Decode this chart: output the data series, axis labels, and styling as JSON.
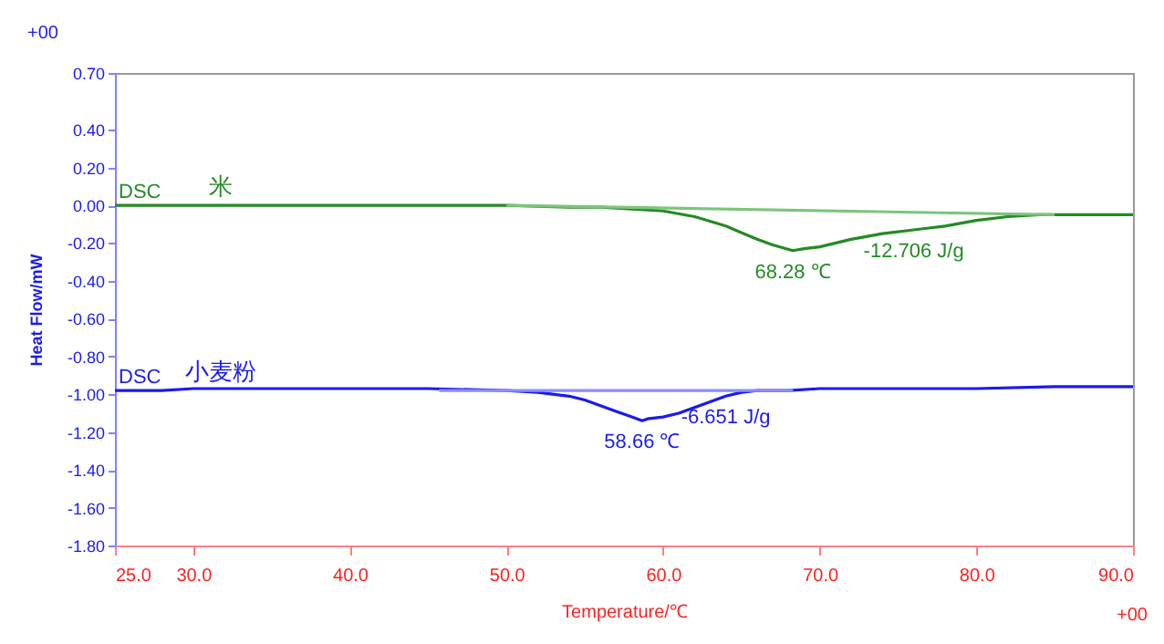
{
  "chart_data": {
    "type": "line",
    "xlabel": "Temperature/℃",
    "ylabel": "Heat Flow/mW",
    "xlim": [
      25,
      90
    ],
    "xticks": [
      {
        "value": 25,
        "label": "25.0"
      },
      {
        "value": 30,
        "label": "30.0"
      },
      {
        "value": 40,
        "label": "40.0"
      },
      {
        "value": 50,
        "label": "50.0"
      },
      {
        "value": 60,
        "label": "60.0"
      },
      {
        "value": 70,
        "label": "70.0"
      },
      {
        "value": 80,
        "label": "80.0"
      },
      {
        "value": 90,
        "label": "90.0"
      }
    ],
    "ylim": [
      -1.8,
      0.7
    ],
    "yticks": [
      {
        "value": 0.7,
        "label": "0.70"
      },
      {
        "value": 0.4,
        "label": "0.40"
      },
      {
        "value": 0.2,
        "label": "0.20"
      },
      {
        "value": 0,
        "label": "0.00"
      },
      {
        "value": -0.2,
        "label": "-0.20"
      },
      {
        "value": -0.4,
        "label": "-0.40"
      },
      {
        "value": -0.6,
        "label": "-0.60"
      },
      {
        "value": -0.8,
        "label": "-0.80"
      },
      {
        "value": -1,
        "label": "-1.00"
      },
      {
        "value": -1.2,
        "label": "-1.20"
      },
      {
        "value": -1.4,
        "label": "-1.40"
      },
      {
        "value": -1.6,
        "label": "-1.60"
      },
      {
        "value": -1.8,
        "label": "-1.80"
      }
    ],
    "series": [
      {
        "name": "米",
        "color": "#228b22",
        "x": [
          25,
          30,
          35,
          40,
          45,
          50,
          54,
          56,
          58,
          60,
          62,
          64,
          66,
          67,
          68.28,
          69,
          70,
          72,
          74,
          76,
          78,
          80,
          82,
          84,
          86,
          88,
          90
        ],
        "values": [
          0,
          0,
          0,
          0,
          0,
          0,
          -0.01,
          -0.01,
          -0.02,
          -0.03,
          -0.06,
          -0.11,
          -0.18,
          -0.21,
          -0.24,
          -0.23,
          -0.22,
          -0.18,
          -0.15,
          -0.13,
          -0.11,
          -0.08,
          -0.06,
          -0.05,
          -0.05,
          -0.05,
          -0.05
        ]
      },
      {
        "type": "line",
        "color": "#7cc47c",
        "x": [
          50,
          85
        ],
        "values": [
          0,
          -0.05
        ]
      },
      {
        "name": "小麦粉",
        "color": "#1a1aee",
        "x": [
          25,
          28,
          30,
          35,
          40,
          45,
          50,
          52,
          54,
          55,
          56,
          57,
          58,
          58.66,
          59,
          60,
          61,
          62,
          63,
          64,
          65,
          66,
          68,
          70,
          75,
          80,
          85,
          90
        ],
        "values": [
          -0.98,
          -0.98,
          -0.97,
          -0.97,
          -0.97,
          -0.97,
          -0.98,
          -0.99,
          -1.01,
          -1.03,
          -1.06,
          -1.09,
          -1.12,
          -1.14,
          -1.13,
          -1.12,
          -1.1,
          -1.07,
          -1.04,
          -1.01,
          -0.99,
          -0.98,
          -0.98,
          -0.97,
          -0.97,
          -0.97,
          -0.96,
          -0.96
        ]
      },
      {
        "type": "line",
        "color": "#8c8cff",
        "x": [
          45.7,
          68.3
        ],
        "values": [
          -0.98,
          -0.98
        ]
      }
    ],
    "annotations": [
      {
        "text": "DSC",
        "x": 25,
        "y": 0
      },
      {
        "text": "DSC",
        "x": 25,
        "y": -0.98
      },
      {
        "text": "68.28 ℃",
        "x": 68.28,
        "y": -0.24
      },
      {
        "text": "-12.706 J/g",
        "x": 76,
        "y": -0.13
      },
      {
        "text": "58.66 ℃",
        "x": 58.66,
        "y": -1.14
      },
      {
        "text": "-6.651 J/g",
        "x": 64,
        "y": -1.01
      },
      "+00",
      "+00"
    ]
  }
}
